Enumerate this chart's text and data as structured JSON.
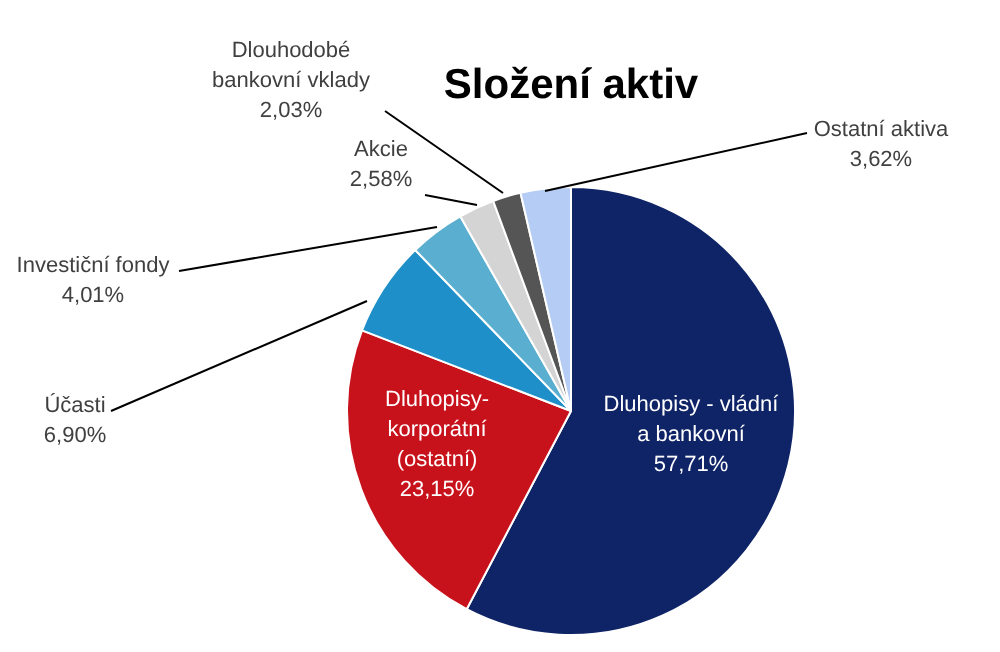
{
  "chart_data": {
    "type": "pie",
    "title": "Složení aktiv",
    "categories": [
      "Dluhopisy - vládní\na bankovní",
      "Dluhopisy-\nkorporátní\n(ostatní)",
      "Účasti",
      "Investiční fondy",
      "Akcie",
      "Dlouhodobé\nbankovní vklady",
      "Ostatní aktiva"
    ],
    "values": [
      57.71,
      23.15,
      6.9,
      4.01,
      2.58,
      2.03,
      3.62
    ],
    "colors": [
      "#0f2466",
      "#c8121b",
      "#1e8fc8",
      "#5aafd0",
      "#d4d4d4",
      "#555555",
      "#b5cdf5"
    ],
    "value_labels": [
      "57,71%",
      "23,15%",
      "6,90%",
      "4,01%",
      "2,58%",
      "2,03%",
      "3,62%"
    ]
  }
}
